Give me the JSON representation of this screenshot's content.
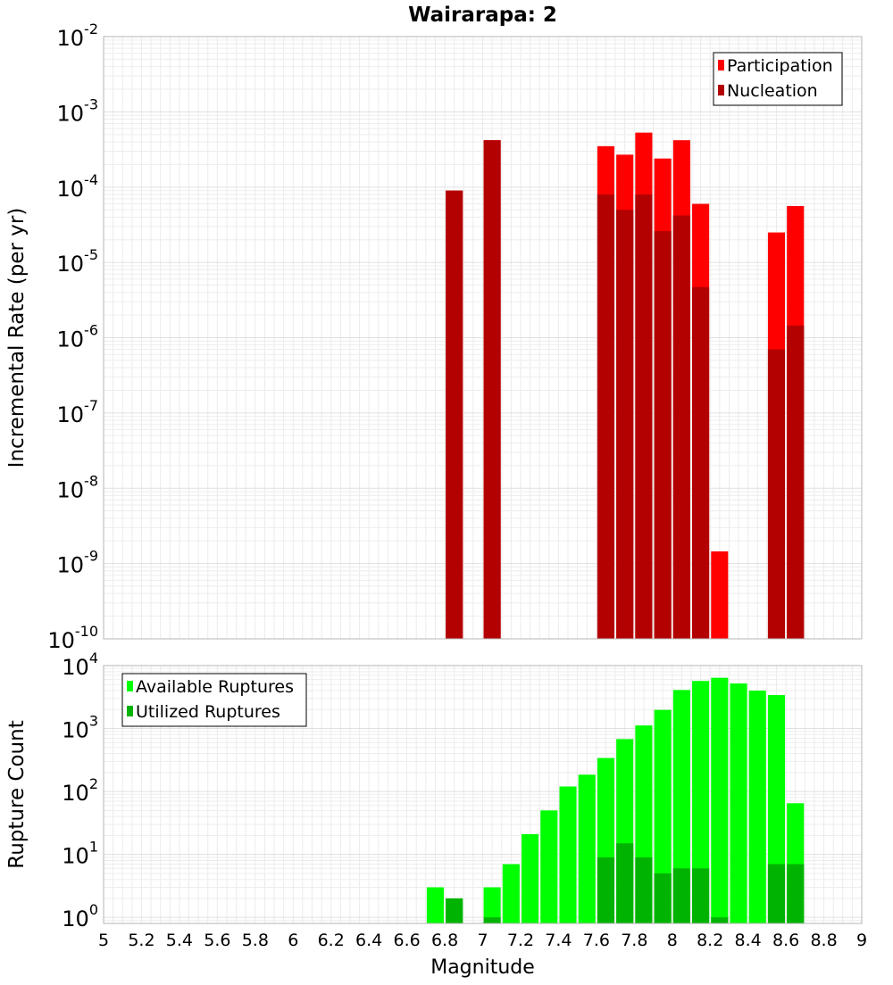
{
  "chart_data": [
    {
      "type": "bar",
      "title": "Wairarapa: 2",
      "xlabel": "",
      "ylabel": "Incremental Rate (per yr)",
      "scale_y": "log",
      "ylim": [
        1e-10,
        0.01
      ],
      "xlim": [
        5,
        9
      ],
      "grid": true,
      "legend_position": "top-right",
      "bar_width": 0.09,
      "series": [
        {
          "name": "Participation",
          "color": "#ff0000",
          "points": [
            {
              "x": 6.85,
              "y": 9e-05
            },
            {
              "x": 7.05,
              "y": 0.00042
            },
            {
              "x": 7.65,
              "y": 0.00035
            },
            {
              "x": 7.75,
              "y": 0.00027
            },
            {
              "x": 7.85,
              "y": 0.00053
            },
            {
              "x": 7.95,
              "y": 0.00024
            },
            {
              "x": 8.05,
              "y": 0.00042
            },
            {
              "x": 8.15,
              "y": 6e-05
            },
            {
              "x": 8.25,
              "y": 1.45e-09
            },
            {
              "x": 8.55,
              "y": 2.5e-05
            },
            {
              "x": 8.65,
              "y": 5.6e-05
            }
          ]
        },
        {
          "name": "Nucleation",
          "color": "#b30000",
          "points": [
            {
              "x": 6.85,
              "y": 9e-05
            },
            {
              "x": 7.05,
              "y": 0.00042
            },
            {
              "x": 7.65,
              "y": 8e-05
            },
            {
              "x": 7.75,
              "y": 5e-05
            },
            {
              "x": 7.85,
              "y": 8e-05
            },
            {
              "x": 7.95,
              "y": 2.6e-05
            },
            {
              "x": 8.05,
              "y": 4.2e-05
            },
            {
              "x": 8.15,
              "y": 4.7e-06
            },
            {
              "x": 8.55,
              "y": 7e-07
            },
            {
              "x": 8.65,
              "y": 1.45e-06
            }
          ]
        }
      ]
    },
    {
      "type": "bar",
      "title": "",
      "xlabel": "Magnitude",
      "ylabel": "Rupture Count",
      "scale_y": "log",
      "ylim": [
        0.8,
        10000
      ],
      "xlim": [
        5,
        9
      ],
      "grid": true,
      "legend_position": "top-left",
      "bar_width": 0.09,
      "x_ticks": [
        "5",
        "5.2",
        "5.4",
        "5.6",
        "5.8",
        "6",
        "6.2",
        "6.4",
        "6.6",
        "6.8",
        "7",
        "7.2",
        "7.4",
        "7.6",
        "7.8",
        "8",
        "8.2",
        "8.4",
        "8.6",
        "8.8",
        "9"
      ],
      "series": [
        {
          "name": "Available Ruptures",
          "color": "#00ff00",
          "points": [
            {
              "x": 6.75,
              "y": 3
            },
            {
              "x": 6.85,
              "y": 2
            },
            {
              "x": 7.05,
              "y": 3
            },
            {
              "x": 7.15,
              "y": 7
            },
            {
              "x": 7.25,
              "y": 21
            },
            {
              "x": 7.35,
              "y": 50
            },
            {
              "x": 7.45,
              "y": 120
            },
            {
              "x": 7.55,
              "y": 185
            },
            {
              "x": 7.65,
              "y": 340
            },
            {
              "x": 7.75,
              "y": 680
            },
            {
              "x": 7.85,
              "y": 1120
            },
            {
              "x": 7.95,
              "y": 1980
            },
            {
              "x": 8.05,
              "y": 4100
            },
            {
              "x": 8.15,
              "y": 5700
            },
            {
              "x": 8.25,
              "y": 6400
            },
            {
              "x": 8.35,
              "y": 5200
            },
            {
              "x": 8.45,
              "y": 4000
            },
            {
              "x": 8.55,
              "y": 3400
            },
            {
              "x": 8.65,
              "y": 65
            }
          ]
        },
        {
          "name": "Utilized Ruptures",
          "color": "#00b300",
          "points": [
            {
              "x": 6.85,
              "y": 2
            },
            {
              "x": 7.05,
              "y": 1
            },
            {
              "x": 7.65,
              "y": 9
            },
            {
              "x": 7.75,
              "y": 15
            },
            {
              "x": 7.85,
              "y": 9
            },
            {
              "x": 7.95,
              "y": 5
            },
            {
              "x": 8.05,
              "y": 6
            },
            {
              "x": 8.15,
              "y": 6
            },
            {
              "x": 8.25,
              "y": 1
            },
            {
              "x": 8.55,
              "y": 7
            },
            {
              "x": 8.65,
              "y": 7
            }
          ]
        }
      ]
    }
  ]
}
